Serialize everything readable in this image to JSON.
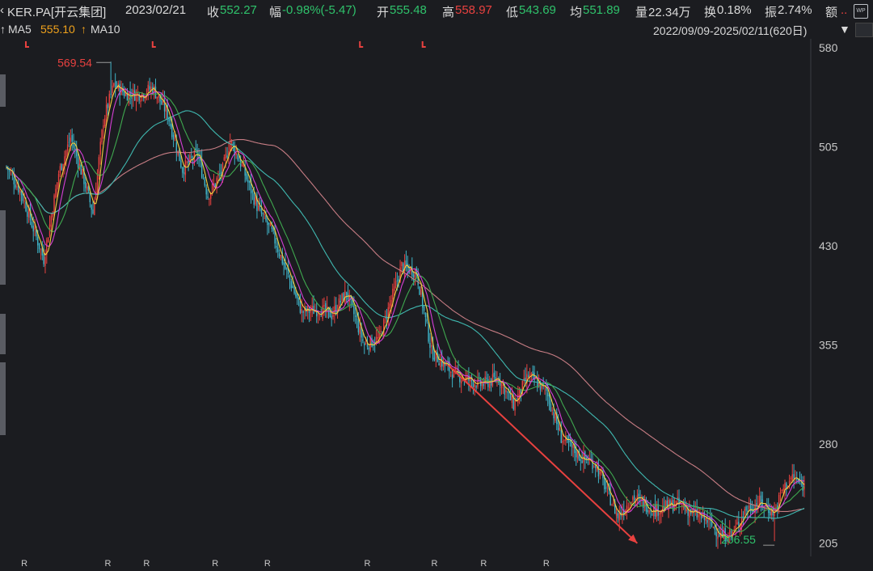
{
  "header": {
    "symbol": "KER.PA[开云集团]",
    "date": "2023/02/21",
    "close_label": "收",
    "close_value": "552.27",
    "change_label": "幅",
    "change_value": "-0.98%(-5.47)",
    "open_label": "开",
    "open_value": "555.48",
    "high_label": "高",
    "high_value": "558.97",
    "low_label": "低",
    "low_value": "543.69",
    "avg_label": "均",
    "avg_value": "551.89",
    "volume_label": "量",
    "volume_value": "22.34万",
    "turnover_label": "换",
    "turnover_value": "0.18%",
    "amplitude_label": "振",
    "amplitude_value": "2.74%",
    "amount_label": "额",
    "amount_value": "..",
    "wp_icon": "WP"
  },
  "indicator_bar": {
    "ma5_label": "MA5",
    "ma5_value": "555.10",
    "ma5_arrow": "↑",
    "ma10_label": "MA10",
    "date_range": "2022/09/09-2025/02/11(620日)",
    "dropdown_icon": "▼"
  },
  "colors": {
    "background": "#1b1c20",
    "up_candle": "#e8413f",
    "down_candle": "#3fb4c8",
    "ma5": "#f4d03f",
    "ma10": "#d63fd6",
    "ma20": "#3fa84f",
    "ma60": "#3fb8b0",
    "ma120": "#c77d84",
    "arrow": "#e8413f",
    "high_annot": "#e8413f",
    "low_annot": "#2fc26b"
  },
  "chart_data": {
    "type": "candlestick",
    "title": "",
    "ylim": [
      195,
      585
    ],
    "y_ticks": [
      580,
      505,
      430,
      355,
      280,
      205
    ],
    "high_marker": {
      "label": "569.54",
      "index": 70,
      "value": 569.54
    },
    "low_marker": {
      "label": "206.55",
      "index": 515,
      "value": 206.55
    },
    "r_markers": {
      "label": "R",
      "indices": [
        12,
        68,
        94,
        140,
        175,
        242,
        287,
        320,
        362
      ]
    },
    "ex_markers": [
      13,
      98,
      237,
      279
    ],
    "anchors": [
      [
        0,
        490
      ],
      [
        10,
        470
      ],
      [
        25,
        420
      ],
      [
        35,
        485
      ],
      [
        43,
        512
      ],
      [
        52,
        480
      ],
      [
        58,
        455
      ],
      [
        65,
        525
      ],
      [
        72,
        552
      ],
      [
        80,
        545
      ],
      [
        90,
        545
      ],
      [
        98,
        550
      ],
      [
        108,
        530
      ],
      [
        118,
        488
      ],
      [
        128,
        500
      ],
      [
        135,
        468
      ],
      [
        145,
        488
      ],
      [
        150,
        510
      ],
      [
        158,
        490
      ],
      [
        168,
        460
      ],
      [
        178,
        440
      ],
      [
        188,
        410
      ],
      [
        198,
        380
      ],
      [
        210,
        382
      ],
      [
        218,
        378
      ],
      [
        228,
        395
      ],
      [
        240,
        355
      ],
      [
        250,
        360
      ],
      [
        265,
        415
      ],
      [
        275,
        410
      ],
      [
        285,
        350
      ],
      [
        300,
        333
      ],
      [
        318,
        325
      ],
      [
        330,
        330
      ],
      [
        340,
        310
      ],
      [
        350,
        332
      ],
      [
        362,
        320
      ],
      [
        372,
        285
      ],
      [
        385,
        270
      ],
      [
        395,
        265
      ],
      [
        410,
        225
      ],
      [
        420,
        240
      ],
      [
        435,
        230
      ],
      [
        450,
        235
      ],
      [
        460,
        228
      ],
      [
        470,
        222
      ],
      [
        480,
        210
      ],
      [
        488,
        214
      ],
      [
        495,
        230
      ],
      [
        505,
        236
      ],
      [
        515,
        228
      ],
      [
        520,
        245
      ],
      [
        527,
        255
      ],
      [
        532,
        250
      ],
      [
        535,
        248
      ]
    ]
  }
}
